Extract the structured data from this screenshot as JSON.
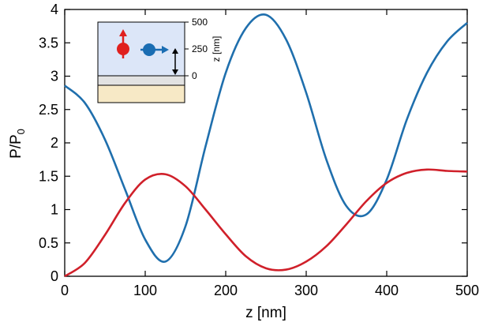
{
  "chart_data": {
    "type": "line",
    "xlabel": "z [nm]",
    "ylabel": "P/P",
    "ylabel_sub": "0",
    "xlim": [
      0,
      500
    ],
    "ylim": [
      0,
      4
    ],
    "xticks": [
      "0",
      "100",
      "200",
      "300",
      "400",
      "500"
    ],
    "yticks": [
      "0",
      "0.5",
      "1",
      "1.5",
      "2",
      "2.5",
      "3",
      "3.5",
      "4"
    ],
    "grid": false,
    "legend": "none",
    "series": [
      {
        "color": "#1f6fad",
        "x": [
          0,
          25,
          50,
          75,
          100,
          125,
          150,
          175,
          200,
          225,
          250,
          275,
          300,
          325,
          350,
          375,
          400,
          425,
          450,
          475,
          500
        ],
        "y": [
          2.86,
          2.6,
          2.05,
          1.3,
          0.55,
          0.22,
          0.75,
          1.95,
          3.05,
          3.72,
          3.92,
          3.55,
          2.75,
          1.75,
          1.05,
          0.93,
          1.45,
          2.35,
          3.05,
          3.52,
          3.8
        ]
      },
      {
        "color": "#d0202a",
        "x": [
          0,
          25,
          50,
          75,
          100,
          125,
          150,
          175,
          200,
          225,
          250,
          275,
          300,
          325,
          350,
          375,
          400,
          425,
          450,
          475,
          500
        ],
        "y": [
          0,
          0.2,
          0.62,
          1.1,
          1.45,
          1.53,
          1.35,
          1.0,
          0.63,
          0.3,
          0.12,
          0.1,
          0.22,
          0.45,
          0.78,
          1.13,
          1.4,
          1.55,
          1.6,
          1.58,
          1.57
        ]
      }
    ],
    "inset": {
      "axis_ticks": [
        "500",
        "250",
        "0"
      ],
      "axis_label": "z [nm]",
      "colors": {
        "medium": "#dce6f8",
        "film": "#e2e2e2",
        "substrate": "#f7e9c6",
        "dipole_red": "#e0201e",
        "dipole_blue": "#1a6db3"
      },
      "icons": [
        "vertical-dipole-icon",
        "horizontal-dipole-icon",
        "double-arrow-icon"
      ]
    }
  }
}
